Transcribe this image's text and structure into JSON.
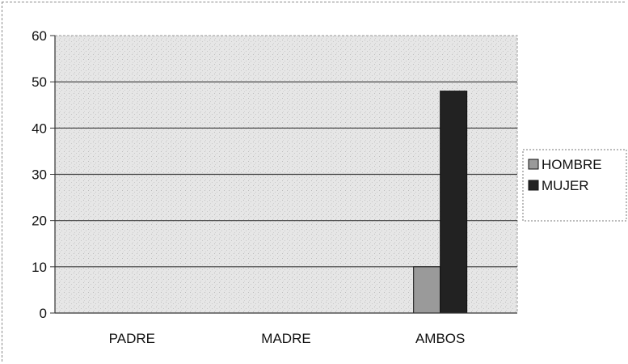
{
  "chart_data": {
    "type": "bar",
    "categories": [
      "PADRE",
      "MADRE",
      "AMBOS"
    ],
    "series": [
      {
        "name": "HOMBRE",
        "values": [
          0,
          0,
          10
        ],
        "color": "#9a9a9a"
      },
      {
        "name": "MUJER",
        "values": [
          0,
          0,
          48
        ],
        "color": "#222222"
      }
    ],
    "ylim": [
      0,
      60
    ],
    "yticks": [
      0,
      10,
      20,
      30,
      40,
      50,
      60
    ],
    "grid": true,
    "legend": "right",
    "plot_background": "#e4e4e4"
  }
}
